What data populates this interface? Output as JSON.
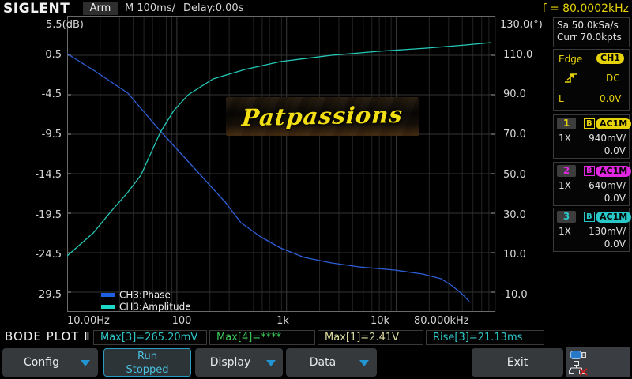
{
  "colors": {
    "yellow": "#e6d30a",
    "magenta": "#e028e0",
    "cyan": "#28c8c8",
    "blue_arrow": "#2196d3",
    "run_cyan": "#4cc0e0",
    "green": "#3cc85a",
    "pale_yellow": "#dcdca0",
    "phase_blue": "#2f5fd8",
    "amp_cyan": "#25c9b8"
  },
  "header": {
    "brand": "SIGLENT",
    "acq_status": "Arm",
    "timebase": "M 100ms/",
    "delay": "Delay:0.00s",
    "freq_readout": "f = 80.0002kHz"
  },
  "right_panel": {
    "sample_rate": "Sa 50.0kSa/s",
    "mem_depth": "Curr 70.0kpts",
    "trigger": {
      "type": "Edge",
      "source": "CH1",
      "coupling": "DC",
      "level_label": "L",
      "level": "0.0V",
      "slope_icon": "rising-edge-icon"
    },
    "channels": [
      {
        "num": "1",
        "badge": "B",
        "coupling": "AC1M",
        "probe": "1X",
        "scale": "940mV/",
        "offset": "0.0V",
        "color": "#e6d30a"
      },
      {
        "num": "2",
        "badge": "B",
        "coupling": "AC1M",
        "probe": "1X",
        "scale": "640mV/",
        "offset": "0.0V",
        "color": "#e028e0"
      },
      {
        "num": "3",
        "badge": "B",
        "coupling": "AC1M",
        "probe": "1X",
        "scale": "130mV/",
        "offset": "0.0V",
        "color": "#28c8c8"
      }
    ]
  },
  "plot": {
    "left_axis_title": "5.5(dB)",
    "right_axis_title": "130.0(°)",
    "left_ticks": [
      "0.5",
      "-4.5",
      "-9.5",
      "-14.5",
      "-19.5",
      "-24.5",
      "-29.5"
    ],
    "right_ticks": [
      "110.0",
      "90.0",
      "70.0",
      "50.0",
      "30.0",
      "10.0",
      "-10.0"
    ],
    "x_ticks": [
      "10.00Hz",
      "100",
      "1k",
      "10k",
      "80.000kHz"
    ],
    "legend": [
      {
        "label": "CH3:Phase",
        "color": "#1c5fe0"
      },
      {
        "label": "CH3:Amplitude",
        "color": "#1cd8c4"
      }
    ],
    "watermark": "Patpassions"
  },
  "chart_data": {
    "type": "line",
    "title": "Bode plot: CH3 amplitude (dB, left axis) and phase (°, right axis) vs frequency",
    "x_axis": {
      "scale": "log",
      "min_hz": 10,
      "max_hz": 80000,
      "tick_labels": [
        "10.00Hz",
        "100",
        "1k",
        "10k",
        "80.000kHz"
      ]
    },
    "y_left": {
      "unit": "dB",
      "top": 5.5,
      "step": -5,
      "ticks": [
        5.5,
        0.5,
        -4.5,
        -9.5,
        -14.5,
        -19.5,
        -24.5,
        -29.5
      ]
    },
    "y_right": {
      "unit": "deg",
      "top": 130,
      "step": -20,
      "ticks": [
        130,
        110,
        90,
        70,
        50,
        30,
        10,
        -10
      ]
    },
    "grid": true,
    "legend_position": "bottom-left",
    "series": [
      {
        "name": "CH3:Phase",
        "axis": "right",
        "color": "#2f5fd8",
        "points": [
          [
            10,
            110.8
          ],
          [
            17.9,
            102
          ],
          [
            35.8,
            90.8
          ],
          [
            70.8,
            71.6
          ],
          [
            142,
            53.2
          ],
          [
            276,
            35.6
          ],
          [
            384,
            25.2
          ],
          [
            581,
            18
          ],
          [
            879,
            12.4
          ],
          [
            1450,
            7.6
          ],
          [
            2580,
            4.8
          ],
          [
            4580,
            2.8
          ],
          [
            9700,
            1.2
          ],
          [
            17400,
            -0.8
          ],
          [
            25600,
            -3.2
          ],
          [
            32300,
            -6.8
          ],
          [
            38900,
            -10.4
          ],
          [
            45800,
            -14.4
          ]
        ]
      },
      {
        "name": "CH3:Amplitude",
        "axis": "left",
        "color": "#25c9b8",
        "points": [
          [
            10,
            -24.9
          ],
          [
            12.8,
            -23.6
          ],
          [
            17.3,
            -22
          ],
          [
            25,
            -19.3
          ],
          [
            35,
            -17
          ],
          [
            47,
            -14.7
          ],
          [
            71,
            -9.2
          ],
          [
            94,
            -6.5
          ],
          [
            127,
            -4.5
          ],
          [
            214,
            -2.5
          ],
          [
            417,
            -1.3
          ],
          [
            880,
            -0.3
          ],
          [
            2580,
            0.5
          ],
          [
            6900,
            1.0
          ],
          [
            18900,
            1.4
          ],
          [
            43000,
            1.8
          ],
          [
            73000,
            2.1
          ]
        ]
      }
    ]
  },
  "status_bar": {
    "mode_label": "BODE PLOT Ⅱ",
    "measurements": [
      {
        "text": "Max[3]=265.20mV",
        "color": "#30c8c8"
      },
      {
        "text": "Max[4]=****",
        "color": "#3cc85a"
      },
      {
        "text": "Max[1]=2.41V",
        "color": "#dcdca0"
      },
      {
        "text": "Rise[3]=21.13ms",
        "color": "#30c8c8"
      }
    ]
  },
  "menu": {
    "config": "Config",
    "run_line1": "Run",
    "run_line2": "Stopped",
    "display": "Display",
    "data": "Data",
    "exit": "Exit",
    "usb_icon": "usb-icon",
    "lan_icon": "lan-disconnected-icon"
  }
}
